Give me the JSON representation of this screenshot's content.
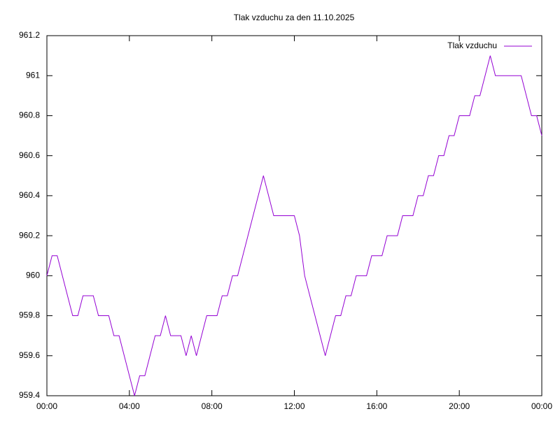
{
  "chart_data": {
    "type": "line",
    "title": "Tlak vzduchu za den 11.10.2025",
    "x": [
      0,
      0.25,
      0.5,
      0.75,
      1,
      1.25,
      1.5,
      1.75,
      2,
      2.25,
      2.5,
      2.75,
      3,
      3.25,
      3.5,
      3.75,
      4,
      4.25,
      4.5,
      4.75,
      5,
      5.25,
      5.5,
      5.75,
      6,
      6.25,
      6.5,
      6.75,
      7,
      7.25,
      7.5,
      7.75,
      8,
      8.25,
      8.5,
      8.75,
      9,
      9.25,
      9.5,
      9.75,
      10,
      10.25,
      10.5,
      10.75,
      11,
      11.25,
      11.5,
      11.75,
      12,
      12.25,
      12.5,
      12.75,
      13,
      13.25,
      13.5,
      13.75,
      14,
      14.25,
      14.5,
      14.75,
      15,
      15.25,
      15.5,
      15.75,
      16,
      16.25,
      16.5,
      16.75,
      17,
      17.25,
      17.5,
      17.75,
      18,
      18.25,
      18.5,
      18.75,
      19,
      19.25,
      19.5,
      19.75,
      20,
      20.25,
      20.5,
      20.75,
      21,
      21.25,
      21.5,
      21.75,
      22,
      22.25,
      22.5,
      22.75,
      23,
      23.25,
      23.5,
      23.75,
      24
    ],
    "series": [
      {
        "name": "Tlak vzduchu",
        "color": "#9400d3",
        "values": [
          960.0,
          960.1,
          960.1,
          960.0,
          959.9,
          959.8,
          959.8,
          959.9,
          959.9,
          959.9,
          959.8,
          959.8,
          959.8,
          959.7,
          959.7,
          959.6,
          959.5,
          959.4,
          959.5,
          959.5,
          959.6,
          959.7,
          959.7,
          959.8,
          959.7,
          959.7,
          959.7,
          959.6,
          959.7,
          959.6,
          959.7,
          959.8,
          959.8,
          959.8,
          959.9,
          959.9,
          960.0,
          960.0,
          960.1,
          960.2,
          960.3,
          960.4,
          960.5,
          960.4,
          960.3,
          960.3,
          960.3,
          960.3,
          960.3,
          960.2,
          960.0,
          959.9,
          959.8,
          959.7,
          959.6,
          959.7,
          959.8,
          959.8,
          959.9,
          959.9,
          960.0,
          960.0,
          960.0,
          960.1,
          960.1,
          960.1,
          960.2,
          960.2,
          960.2,
          960.3,
          960.3,
          960.3,
          960.4,
          960.4,
          960.5,
          960.5,
          960.6,
          960.6,
          960.7,
          960.7,
          960.8,
          960.8,
          960.8,
          960.9,
          960.9,
          961.0,
          961.1,
          961.0,
          961.0,
          961.0,
          961.0,
          961.0,
          961.0,
          960.9,
          960.8,
          960.8,
          960.7
        ]
      }
    ],
    "xlim": [
      0,
      24
    ],
    "xticks": [
      {
        "value": 0,
        "label": "00:00"
      },
      {
        "value": 4,
        "label": "04:00"
      },
      {
        "value": 8,
        "label": "08:00"
      },
      {
        "value": 12,
        "label": "12:00"
      },
      {
        "value": 16,
        "label": "16:00"
      },
      {
        "value": 20,
        "label": "20:00"
      },
      {
        "value": 24,
        "label": "00:00"
      }
    ],
    "ylim": [
      959.4,
      961.2
    ],
    "yticks": [
      959.4,
      959.6,
      959.8,
      960,
      960.2,
      960.4,
      960.6,
      960.8,
      961,
      961.2
    ],
    "grid": false,
    "legend": "top-right"
  }
}
